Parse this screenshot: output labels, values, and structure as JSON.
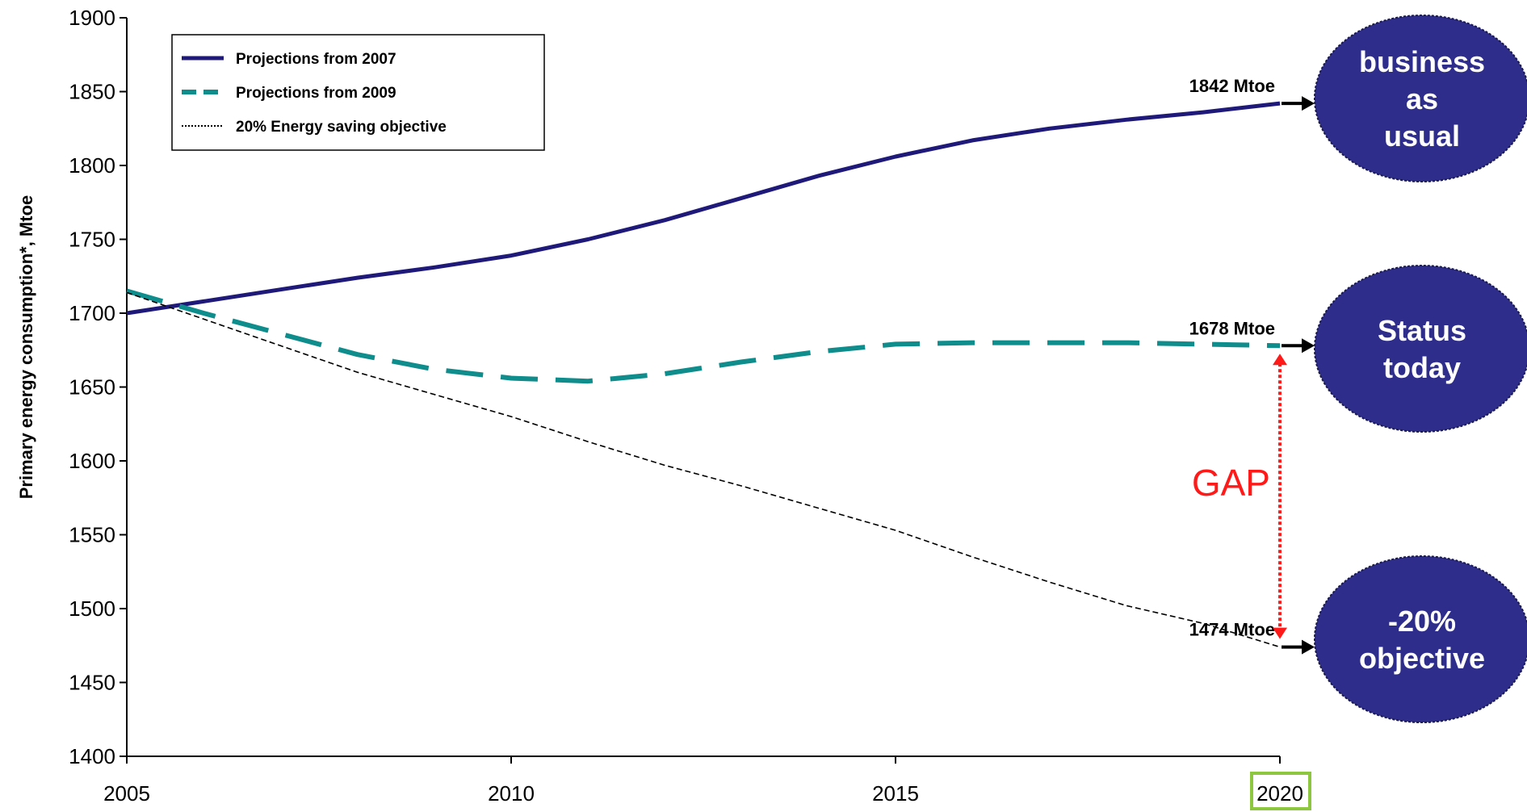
{
  "chart_data": {
    "type": "line",
    "xlabel": "",
    "ylabel": "Primary energy consumption*, Mtoe",
    "xlim": [
      2005,
      2020
    ],
    "ylim": [
      1400,
      1900
    ],
    "x_ticks": [
      2005,
      2010,
      2015,
      2020
    ],
    "y_ticks": [
      1400,
      1450,
      1500,
      1550,
      1600,
      1650,
      1700,
      1750,
      1800,
      1850,
      1900
    ],
    "highlighted_tick": 2020,
    "highlight_color": "#8dc63f",
    "grid": false,
    "legend_position": "top-left",
    "series": [
      {
        "name": "Projections from 2007",
        "color": "#1f1a7a",
        "style": "solid",
        "x": [
          2005,
          2006,
          2007,
          2008,
          2009,
          2010,
          2011,
          2012,
          2013,
          2014,
          2015,
          2016,
          2017,
          2018,
          2019,
          2020
        ],
        "y": [
          1700,
          1708,
          1716,
          1724,
          1731,
          1739,
          1750,
          1763,
          1778,
          1793,
          1806,
          1817,
          1825,
          1831,
          1836,
          1842
        ]
      },
      {
        "name": "Projections from 2009",
        "color": "#0f8c8c",
        "style": "dashed",
        "x": [
          2005,
          2006,
          2007,
          2008,
          2009,
          2010,
          2011,
          2012,
          2013,
          2014,
          2015,
          2016,
          2017,
          2018,
          2019,
          2020
        ],
        "y": [
          1715,
          1700,
          1686,
          1672,
          1662,
          1656,
          1654,
          1659,
          1667,
          1674,
          1679,
          1680,
          1680,
          1680,
          1679,
          1678
        ]
      },
      {
        "name": "20% Energy saving objective",
        "color": "#000000",
        "style": "dotted",
        "x": [
          2005,
          2006,
          2007,
          2008,
          2009,
          2010,
          2011,
          2012,
          2013,
          2014,
          2015,
          2016,
          2017,
          2018,
          2019,
          2020
        ],
        "y": [
          1714,
          1696,
          1678,
          1660,
          1645,
          1630,
          1613,
          1597,
          1583,
          1568,
          1553,
          1535,
          1518,
          1502,
          1490,
          1474
        ]
      }
    ],
    "annotations": [
      {
        "text": "1842 Mtoe",
        "x": 2020,
        "y": 1842
      },
      {
        "text": "1678 Mtoe",
        "x": 2020,
        "y": 1678
      },
      {
        "text": "1474 Mtoe",
        "x": 2020,
        "y": 1474
      },
      {
        "text": "GAP",
        "color": "#ff1a1a"
      }
    ],
    "bubbles": [
      {
        "lines": [
          "business",
          "as",
          "usual"
        ],
        "y": 1842,
        "color": "#2e2d8c"
      },
      {
        "lines": [
          "Status",
          "today"
        ],
        "y": 1678,
        "color": "#2e2d8c"
      },
      {
        "lines": [
          "-20%",
          "objective"
        ],
        "y": 1474,
        "color": "#2e2d8c"
      }
    ]
  }
}
